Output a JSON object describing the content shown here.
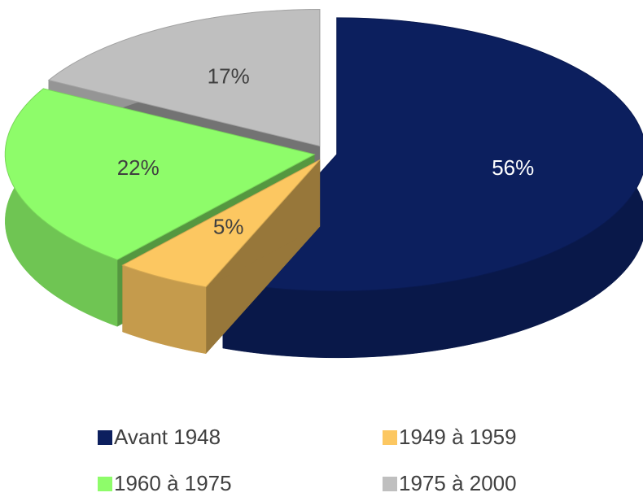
{
  "chart_data": {
    "type": "pie",
    "categories": [
      "Avant 1948",
      "1949 à 1959",
      "1960 à 1975",
      "1975 à 2000"
    ],
    "values": [
      56,
      5,
      22,
      17
    ],
    "value_labels": [
      "56%",
      "5%",
      "22%",
      "17%"
    ],
    "colors": [
      "#0c1f5e",
      "#fcc761",
      "#8efc6a",
      "#bfbfbf"
    ],
    "legend": "bottom"
  }
}
